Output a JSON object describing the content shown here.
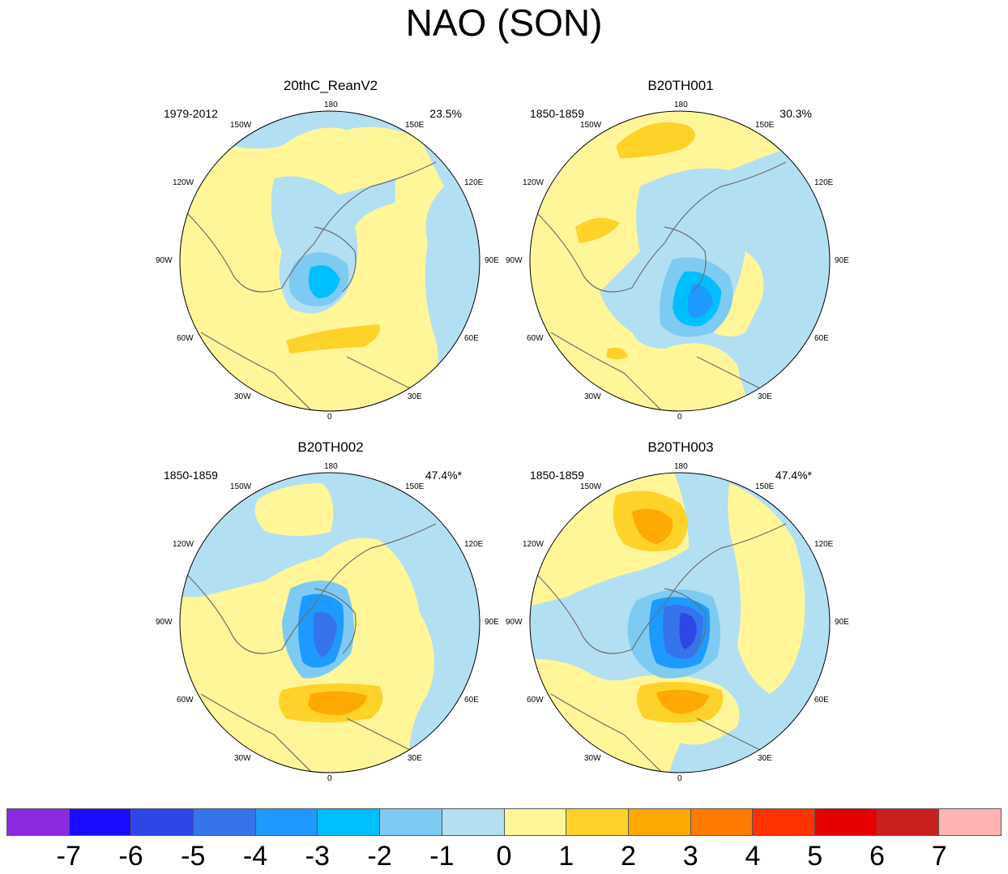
{
  "title": "NAO (SON)",
  "lon_labels": [
    "180",
    "150E",
    "120E",
    "90E",
    "60E",
    "30E",
    "0",
    "30W",
    "60W",
    "90W",
    "120W",
    "150W"
  ],
  "panels": [
    {
      "title": "20thC_ReanV2",
      "period": "1979-2012",
      "percent": "23.5%"
    },
    {
      "title": "B20TH001",
      "period": "1850-1859",
      "percent": "30.3%"
    },
    {
      "title": "B20TH002",
      "period": "1850-1859",
      "percent": "47.4%*"
    },
    {
      "title": "B20TH003",
      "period": "1850-1859",
      "percent": "47.4%*"
    }
  ],
  "colorbar": {
    "colors": [
      "#8a2be2",
      "#1a0dff",
      "#2f46e6",
      "#3574eb",
      "#1e99ff",
      "#00bfff",
      "#7dcbf2",
      "#b3dff2",
      "#fff699",
      "#ffd22a",
      "#ffa905",
      "#ff7a00",
      "#ff3300",
      "#e60000",
      "#cc1f1f",
      "#ffb3b3"
    ],
    "labels": [
      "-7",
      "-6",
      "-5",
      "-4",
      "-3",
      "-2",
      "-1",
      "0",
      "1",
      "2",
      "3",
      "4",
      "5",
      "6",
      "7"
    ]
  },
  "palette": {
    "ocean_land_outline": "#6e6e6e",
    "zero": "#fff699",
    "neg1": "#b3dff2",
    "neg2": "#7dcbf2",
    "neg3": "#00bfff",
    "neg4": "#1e99ff",
    "neg5": "#3574eb",
    "neg6": "#2f46e6",
    "pos1": "#ffd22a",
    "pos2": "#ffa905"
  }
}
